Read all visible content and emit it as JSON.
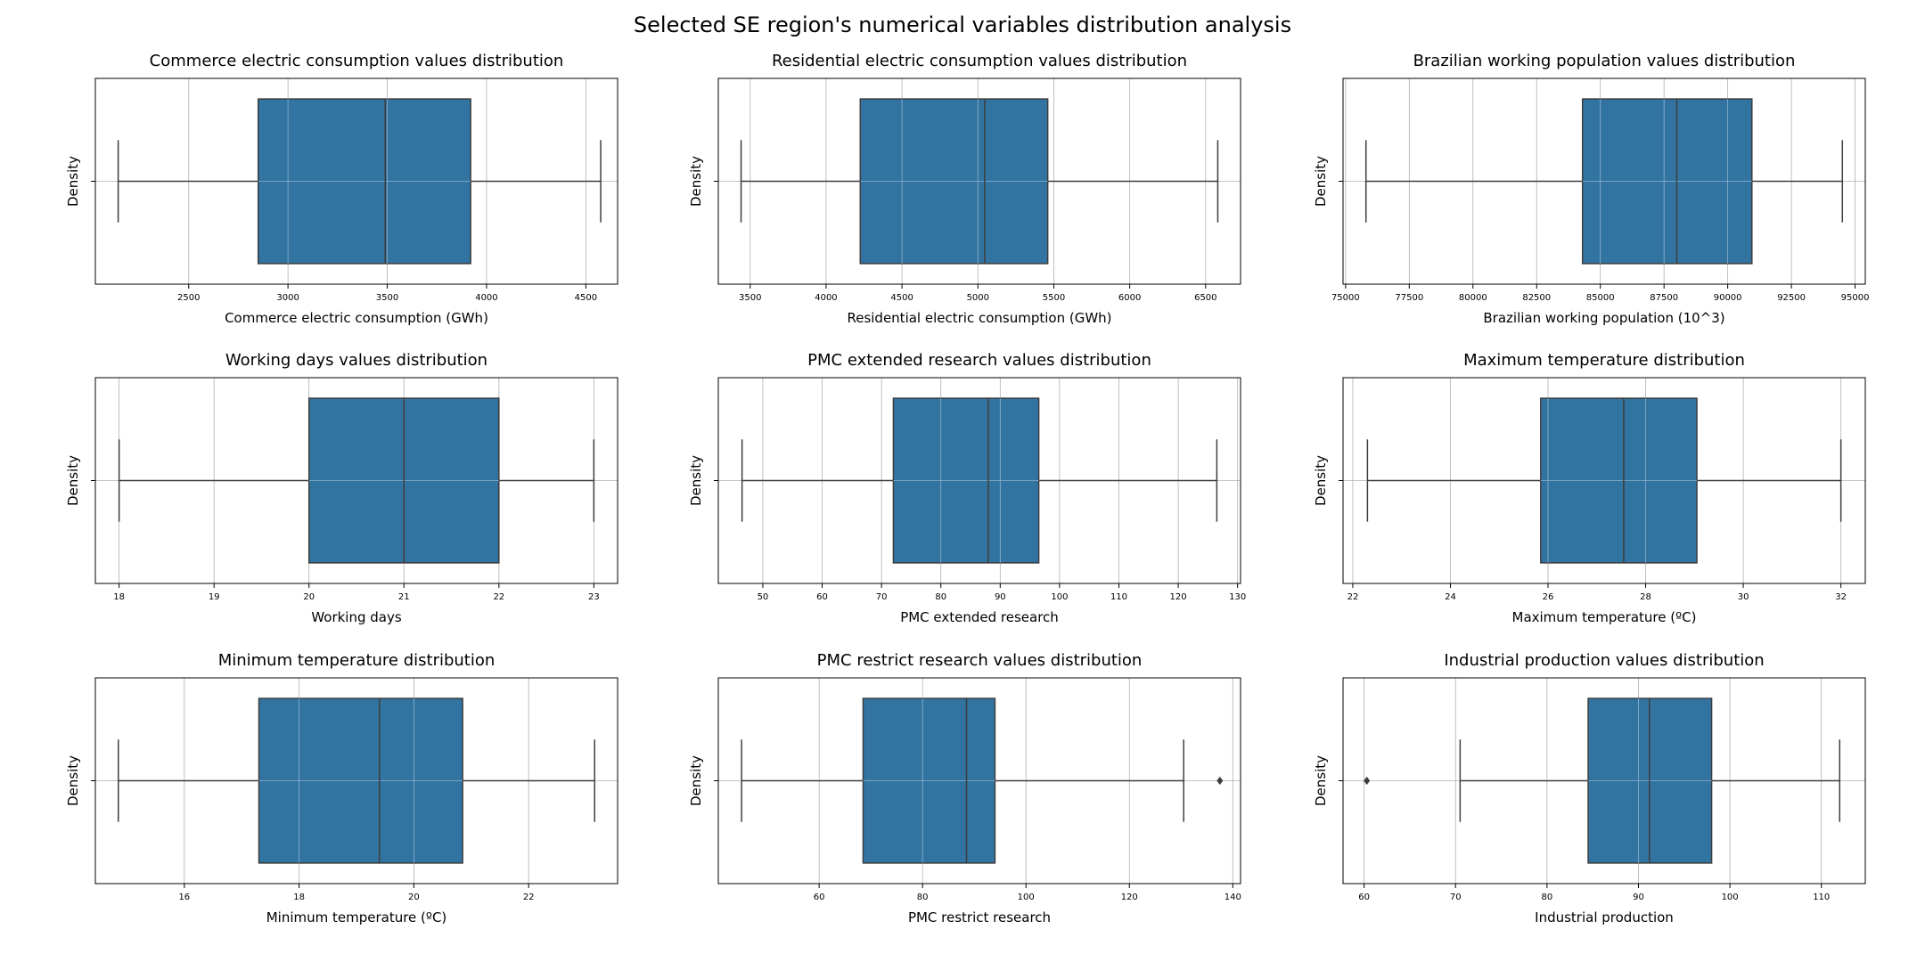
{
  "figure": {
    "title": "Selected SE region's numerical variables distribution analysis",
    "box_color": "#3274a1",
    "line_color": "#3d3d3d",
    "grid_color": "#b0b0b0"
  },
  "chart_data": [
    {
      "type": "box",
      "title": "Commerce electric consumption values distribution",
      "xlabel": "Commerce electric consumption (GWh)",
      "ylabel": "Density",
      "xlim": [
        2030,
        4660
      ],
      "xticks": [
        2500,
        3000,
        3500,
        4000,
        4500
      ],
      "grid": true,
      "stats": {
        "whisker_low": 2145,
        "q1": 2850,
        "median": 3490,
        "q3": 3920,
        "whisker_high": 4575
      },
      "outliers": []
    },
    {
      "type": "box",
      "title": "Residential electric consumption values distribution",
      "xlabel": "Residential electric consumption (GWh)",
      "ylabel": "Density",
      "xlim": [
        3290,
        6730
      ],
      "xticks": [
        3500,
        4000,
        4500,
        5000,
        5500,
        6000,
        6500
      ],
      "grid": true,
      "stats": {
        "whisker_low": 3440,
        "q1": 4225,
        "median": 5045,
        "q3": 5460,
        "whisker_high": 6580
      },
      "outliers": []
    },
    {
      "type": "box",
      "title": "Brazilian working population values distribution",
      "xlabel": "Brazilian working population (10^3)",
      "ylabel": "Density",
      "xlim": [
        74900,
        95400
      ],
      "xticks": [
        75000,
        77500,
        80000,
        82500,
        85000,
        87500,
        90000,
        92500,
        95000
      ],
      "grid": true,
      "stats": {
        "whisker_low": 75800,
        "q1": 84300,
        "median": 88000,
        "q3": 90950,
        "whisker_high": 94500
      },
      "outliers": []
    },
    {
      "type": "box",
      "title": "Working days values distribution",
      "xlabel": "Working days",
      "ylabel": "Density",
      "xlim": [
        17.75,
        23.25
      ],
      "xticks": [
        18,
        19,
        20,
        21,
        22,
        23
      ],
      "grid": true,
      "stats": {
        "whisker_low": 18,
        "q1": 20,
        "median": 21,
        "q3": 22,
        "whisker_high": 23
      },
      "outliers": []
    },
    {
      "type": "box",
      "title": "PMC extended research values distribution",
      "xlabel": "PMC extended research",
      "ylabel": "Density",
      "xlim": [
        42.5,
        130.5
      ],
      "xticks": [
        50,
        60,
        70,
        80,
        90,
        100,
        110,
        120,
        130
      ],
      "grid": true,
      "stats": {
        "whisker_low": 46.5,
        "q1": 72,
        "median": 88,
        "q3": 96.5,
        "whisker_high": 126.5
      },
      "outliers": []
    },
    {
      "type": "box",
      "title": "Maximum temperature distribution",
      "xlabel": "Maximum temperature (ºC)",
      "ylabel": "Density",
      "xlim": [
        21.8,
        32.5
      ],
      "xticks": [
        22,
        24,
        26,
        28,
        30,
        32
      ],
      "grid": true,
      "stats": {
        "whisker_low": 22.3,
        "q1": 25.85,
        "median": 27.55,
        "q3": 29.05,
        "whisker_high": 32.0
      },
      "outliers": []
    },
    {
      "type": "box",
      "title": "Minimum temperature distribution",
      "xlabel": "Minimum temperature (ºC)",
      "ylabel": "Density",
      "xlim": [
        14.45,
        23.55
      ],
      "xticks": [
        16,
        18,
        20,
        22
      ],
      "grid": true,
      "stats": {
        "whisker_low": 14.85,
        "q1": 17.3,
        "median": 19.4,
        "q3": 20.85,
        "whisker_high": 23.15
      },
      "outliers": []
    },
    {
      "type": "box",
      "title": "PMC restrict research values distribution",
      "xlabel": "PMC restrict research",
      "ylabel": "Density",
      "xlim": [
        40.5,
        141.5
      ],
      "xticks": [
        60,
        80,
        100,
        120,
        140
      ],
      "grid": true,
      "stats": {
        "whisker_low": 45,
        "q1": 68.5,
        "median": 88.5,
        "q3": 94,
        "whisker_high": 130.5
      },
      "outliers": [
        137.5
      ]
    },
    {
      "type": "box",
      "title": "Industrial production values distribution",
      "xlabel": "Industrial production",
      "ylabel": "Density",
      "xlim": [
        57.7,
        114.8
      ],
      "xticks": [
        60,
        70,
        80,
        90,
        100,
        110
      ],
      "grid": true,
      "stats": {
        "whisker_low": 70.5,
        "q1": 84.5,
        "median": 91.2,
        "q3": 98.0,
        "whisker_high": 112.0
      },
      "outliers": [
        60.3
      ]
    }
  ]
}
